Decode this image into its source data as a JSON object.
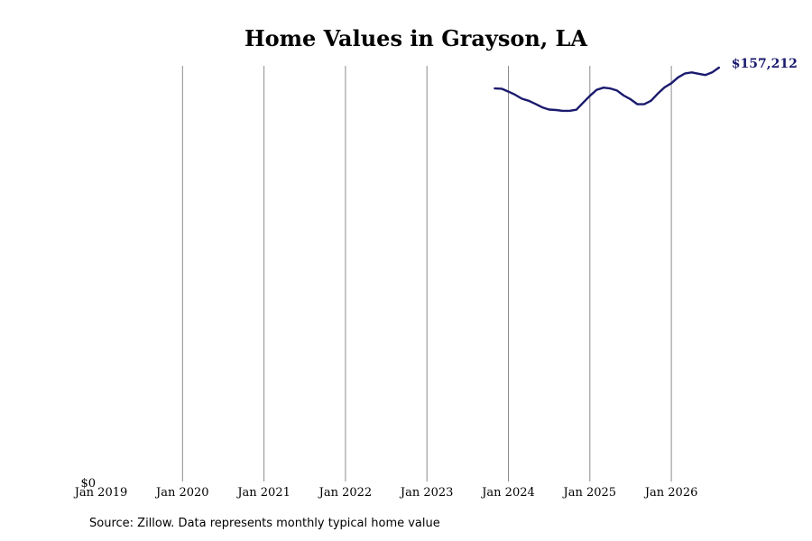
{
  "chart_data": {
    "type": "line",
    "title": "Home Values in Grayson, LA",
    "xlabel": "",
    "ylabel": "",
    "x_tick_labels": [
      "Jan 2019",
      "Jan 2020",
      "Jan 2021",
      "Jan 2022",
      "Jan 2023",
      "Jan 2024",
      "Jan 2025",
      "Jan 2026"
    ],
    "y_tick_labels": [
      "$0"
    ],
    "ylim": [
      0,
      157212
    ],
    "grid": "vertical",
    "line_color": "#1a1a6e",
    "end_label": "$157,212",
    "series": [
      {
        "x": [
          "2023-11",
          "2023-12",
          "2024-01",
          "2024-02",
          "2024-03",
          "2024-04",
          "2024-05",
          "2024-06",
          "2024-07",
          "2024-08",
          "2024-09",
          "2024-10",
          "2024-11",
          "2024-12",
          "2025-01",
          "2025-02",
          "2025-03",
          "2025-04",
          "2025-05",
          "2025-06",
          "2025-07",
          "2025-08",
          "2025-09",
          "2025-10",
          "2025-11",
          "2025-12",
          "2026-01",
          "2026-02",
          "2026-03",
          "2026-04",
          "2026-05",
          "2026-06",
          "2026-07",
          "2026-08"
        ],
        "values": [
          149300,
          149200,
          148100,
          146900,
          145400,
          144600,
          143400,
          142100,
          141300,
          141100,
          140800,
          140800,
          141200,
          143900,
          146500,
          148800,
          149600,
          149300,
          148500,
          146600,
          145200,
          143300,
          143300,
          144600,
          147300,
          149700,
          151300,
          153500,
          155000,
          155400,
          154900,
          154400,
          155400,
          157212
        ]
      }
    ]
  },
  "source_text": "Source: Zillow. Data represents monthly typical home value"
}
